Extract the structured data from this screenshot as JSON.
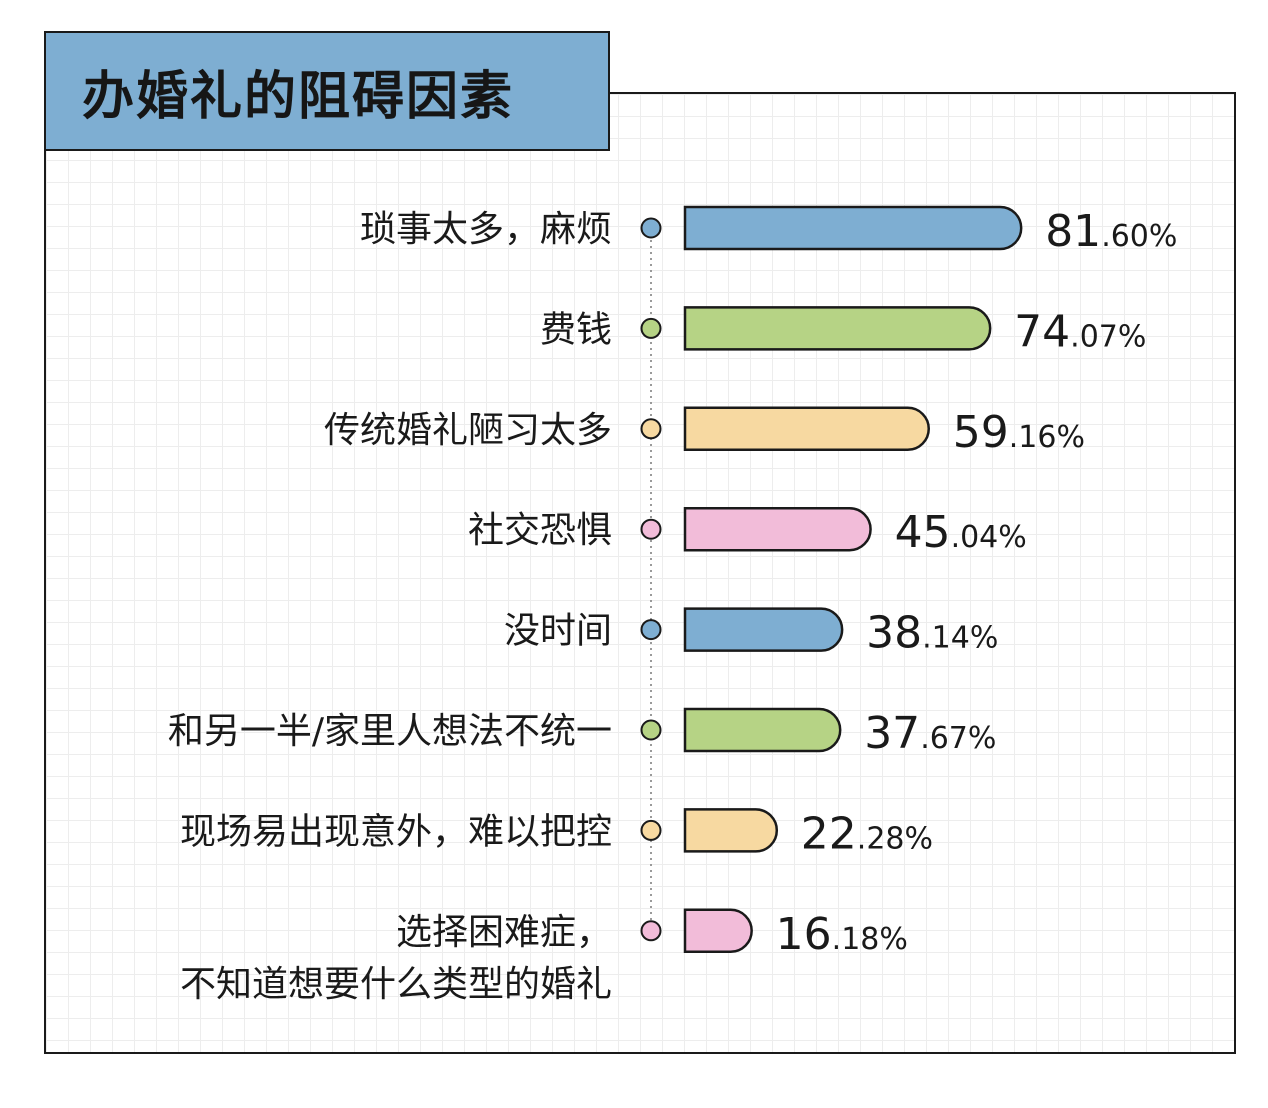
{
  "chart_data": {
    "type": "bar",
    "orientation": "horizontal",
    "title": "办婚礼的阻碍因素",
    "categories": [
      "琐事太多，麻烦",
      "费钱",
      "传统婚礼陋习太多",
      "社交恐惧",
      "没时间",
      "和另一半/家里人想法不统一",
      "现场易出现意外，难以把控",
      "选择困难症，\n不知道想要什么类型的婚礼"
    ],
    "values": [
      81.6,
      74.07,
      59.16,
      45.04,
      38.14,
      37.67,
      22.28,
      16.18
    ],
    "value_labels": [
      {
        "int": "81",
        "dec": ".60%"
      },
      {
        "int": "74",
        "dec": ".07%"
      },
      {
        "int": "59",
        "dec": ".16%"
      },
      {
        "int": "45",
        "dec": ".04%"
      },
      {
        "int": "38",
        "dec": ".14%"
      },
      {
        "int": "37",
        "dec": ".67%"
      },
      {
        "int": "22",
        "dec": ".28%"
      },
      {
        "int": "16",
        "dec": ".18%"
      }
    ],
    "colors": [
      "#7eaed2",
      "#b6d385",
      "#f7d9a1",
      "#f2bcd9",
      "#7eaed2",
      "#b6d385",
      "#f7d9a1",
      "#f2bcd9"
    ],
    "grid": true,
    "legend": "none"
  }
}
